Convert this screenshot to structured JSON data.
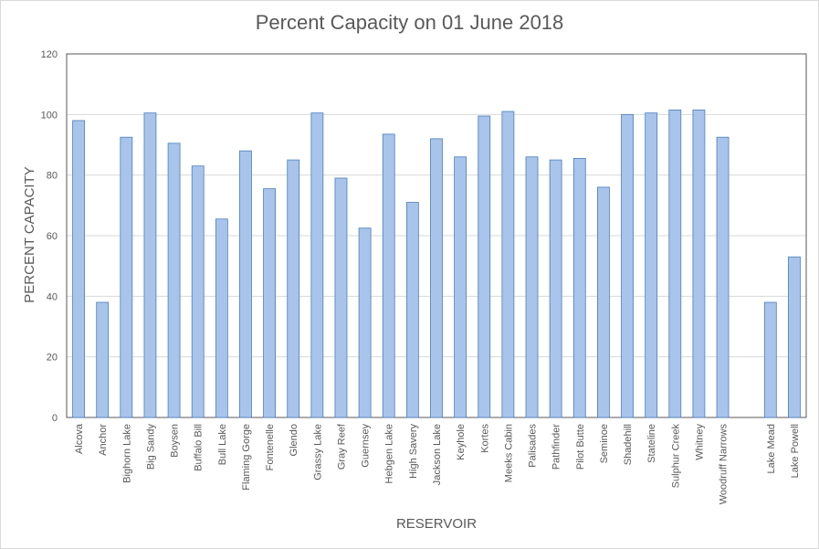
{
  "chart_data": {
    "type": "bar",
    "title": "Percent Capacity on 01 June 2018",
    "xlabel": "RESERVOIR",
    "ylabel": "PERCENT CAPACITY",
    "ylim": [
      0,
      120
    ],
    "yticks": [
      0,
      20,
      40,
      60,
      80,
      100,
      120
    ],
    "grid": true,
    "bar_color": "#a9c4eb",
    "bar_edge_color": "#4a7ebb",
    "categories": [
      "Alcova",
      "Anchor",
      "Bighorn Lake",
      "Big Sandy",
      "Boysen",
      "Buffalo Bill",
      "Bull Lake",
      "Flaming Gorge",
      "Fontenelle",
      "Glendo",
      "Grassy Lake",
      "Gray Reef",
      "Guernsey",
      "Hebgen Lake",
      "High Savery",
      "Jackson Lake",
      "Keyhole",
      "Kortes",
      "Meeks Cabin",
      "Palisades",
      "Pathfinder",
      "Pilot Butte",
      "Seminoe",
      "Shadehill",
      "Stateline",
      "Sulphur Creek",
      "Whitney",
      "Woodruff Narrows",
      "",
      "Lake Mead",
      "Lake Powell"
    ],
    "values": [
      98,
      38,
      92.5,
      100.5,
      90.5,
      83,
      65.5,
      88,
      75.5,
      85,
      100.5,
      79,
      62.5,
      93.5,
      71,
      92,
      86,
      99.5,
      101,
      86,
      85,
      85.5,
      76,
      100,
      100.5,
      101.5,
      101.5,
      92.5,
      null,
      38,
      53
    ]
  }
}
